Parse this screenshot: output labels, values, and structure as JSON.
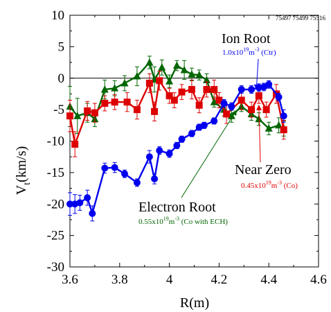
{
  "chart_data": {
    "type": "line",
    "shot_numbers": "75497 75499 75516",
    "xlabel": "R(m)",
    "ylabel_main": "V",
    "ylabel_sub": "t",
    "ylabel_unit": "(km/s)",
    "xlim": [
      3.6,
      4.6
    ],
    "ylim": [
      -30,
      10
    ],
    "x_ticks": [
      "3.6",
      "3.8",
      "4",
      "4.2",
      "4.4",
      "4.6"
    ],
    "y_ticks": [
      "10",
      "5",
      "0",
      "-5",
      "-10",
      "-15",
      "-20",
      "-25",
      "-30"
    ],
    "grid": false,
    "zero_line": true,
    "series": [
      {
        "name": "Ion Root",
        "color": "#0000ee",
        "marker": "circle",
        "x": [
          3.6,
          3.62,
          3.64,
          3.67,
          3.69,
          3.74,
          3.78,
          3.82,
          3.87,
          3.92,
          3.94,
          3.96,
          4.0,
          4.03,
          4.05,
          4.09,
          4.12,
          4.14,
          4.18,
          4.22,
          4.25,
          4.29,
          4.33,
          4.36,
          4.38,
          4.4,
          4.44,
          4.46
        ],
        "y": [
          -20.0,
          -20.0,
          -19.8,
          -19.0,
          -21.5,
          -14.3,
          -14.2,
          -15.2,
          -16.6,
          -12.5,
          -16.0,
          -11.5,
          -12.0,
          -10.7,
          -9.7,
          -8.8,
          -7.8,
          -7.5,
          -6.8,
          -4.0,
          -4.5,
          -1.8,
          -1.8,
          -1.5,
          -1.4,
          -1.0,
          -3.0,
          -6.0
        ],
        "err": [
          1.8,
          1.5,
          1.2,
          1.2,
          1.2,
          0.8,
          0.8,
          0.6,
          0.6,
          1.0,
          0.8,
          0.6,
          0.6,
          0.5,
          0.5,
          0.5,
          0.5,
          0.5,
          0.5,
          0.6,
          0.6,
          0.6,
          0.6,
          0.6,
          0.6,
          0.6,
          0.6,
          1.0
        ]
      },
      {
        "name": "Electron Root",
        "color": "#006600",
        "marker": "triangle",
        "x": [
          3.6,
          3.63,
          3.67,
          3.7,
          3.74,
          3.78,
          3.82,
          3.87,
          3.92,
          3.94,
          3.97,
          4.0,
          4.03,
          4.06,
          4.09,
          4.12,
          4.15,
          4.18,
          4.22,
          4.25,
          4.29,
          4.33,
          4.36,
          4.4,
          4.44,
          4.46
        ],
        "y": [
          -4.5,
          -6.0,
          -5.5,
          -6.5,
          -1.8,
          -1.6,
          -0.8,
          0.3,
          2.5,
          -0.2,
          1.7,
          -0.5,
          2.0,
          1.3,
          0.6,
          0.5,
          -0.3,
          -3.8,
          -5.0,
          -6.0,
          -4.5,
          -5.7,
          -6.5,
          -8.0,
          -7.5,
          -8.0
        ],
        "err": [
          3.2,
          2.8,
          1.5,
          1.2,
          1.5,
          1.2,
          1.2,
          1.5,
          1.0,
          2.0,
          1.2,
          1.0,
          0.8,
          1.5,
          1.0,
          0.8,
          1.0,
          0.8,
          1.0,
          1.0,
          0.8,
          1.0,
          1.0,
          1.0,
          1.2,
          1.2
        ]
      },
      {
        "name": "Near Zero",
        "color": "#dd0000",
        "marker": "square",
        "x": [
          3.6,
          3.62,
          3.67,
          3.7,
          3.74,
          3.78,
          3.83,
          3.87,
          3.92,
          3.94,
          3.96,
          4.0,
          4.02,
          4.05,
          4.09,
          4.12,
          4.15,
          4.18,
          4.2,
          4.23,
          4.29,
          4.33,
          4.36,
          4.39,
          4.43,
          4.46
        ],
        "y": [
          -6.0,
          -10.5,
          -5.2,
          -5.5,
          -4.0,
          -3.8,
          -3.8,
          -5.0,
          -0.8,
          -5.3,
          -0.4,
          -2.8,
          -3.5,
          -2.2,
          -1.8,
          -4.3,
          -1.8,
          -1.8,
          -3.5,
          -5.7,
          -3.5,
          -5.0,
          -2.8,
          -5.0,
          -2.5,
          -8.2
        ],
        "err": [
          2.5,
          2.0,
          1.5,
          1.5,
          1.2,
          1.2,
          1.5,
          1.5,
          1.5,
          1.5,
          1.5,
          1.2,
          1.2,
          1.2,
          1.5,
          1.2,
          1.2,
          1.5,
          1.2,
          1.5,
          1.5,
          1.2,
          1.2,
          1.2,
          1.5,
          1.5
        ]
      }
    ],
    "annotations": [
      {
        "series": "Ion Root",
        "title": "Ion Root",
        "density": "1.0x10",
        "exp": "19",
        "unit": "m",
        "unit_exp": "-3",
        "suffix": " (Ctr)",
        "arrow_to": [
          4.35,
          -1.8
        ]
      },
      {
        "series": "Near Zero",
        "title": "Near Zero",
        "density": "0.45x10",
        "exp": "19",
        "unit": "m",
        "unit_exp": "-3",
        "suffix": " (Co)",
        "arrow_to": [
          4.36,
          -4.3
        ]
      },
      {
        "series": "Electron Root",
        "title": "Electron Root",
        "density": "0.55x10",
        "exp": "19",
        "unit": "m",
        "unit_exp": "-3",
        "suffix": " (Co with ECH)",
        "arrow_to": [
          4.27,
          -5.1
        ]
      }
    ]
  }
}
